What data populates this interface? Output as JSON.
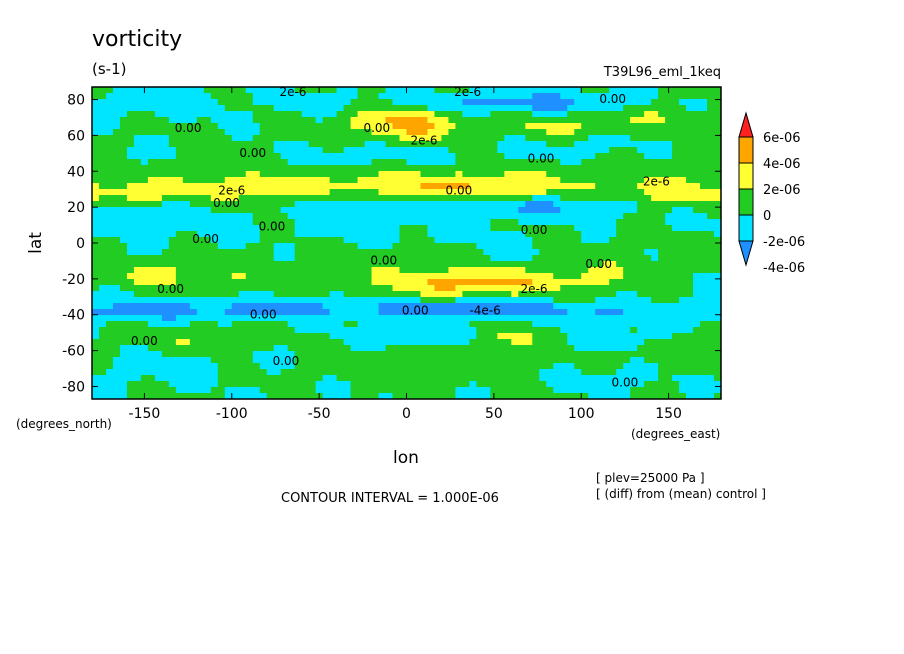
{
  "chart_data": {
    "type": "heatmap",
    "title": "vorticity",
    "units": "(s-1)",
    "experiment": "T39L96_eml_1keq",
    "xlabel": "lon",
    "ylabel": "lat",
    "x_units_label": "(degrees_east)",
    "y_units_label": "(degrees_north)",
    "xlim": [
      -180,
      180
    ],
    "ylim": [
      -87,
      87
    ],
    "xticks": [
      -150,
      -100,
      -50,
      0,
      50,
      100,
      150
    ],
    "xtick_labels": [
      "-150",
      "-100",
      "-50",
      "0",
      "50",
      "100",
      "150"
    ],
    "yticks": [
      80,
      60,
      40,
      20,
      0,
      -20,
      -40,
      -60,
      -80
    ],
    "ytick_labels": [
      "80",
      "60",
      "40",
      "20",
      "0",
      "-20",
      "-40",
      "-60",
      "-80"
    ],
    "contour_interval_text": "CONTOUR INTERVAL = 1.000E-06",
    "level_text": "[ plev=25000 Pa ]",
    "diff_text": "[ (diff) from (mean) control ]",
    "colorbar": {
      "levels": [
        -4e-06,
        -2e-06,
        0,
        2e-06,
        4e-06,
        6e-06
      ],
      "labels": [
        "-4e-06",
        "-2e-06",
        "0",
        "2e-06",
        "4e-06",
        "6e-06"
      ],
      "colors": [
        "#1e90ff",
        "#00e5ff",
        "#22cc22",
        "#ffff33",
        "#ffa500",
        "#ff2020"
      ]
    },
    "contour_labels": [
      {
        "lon": -125,
        "lat": 62,
        "text": "0.00"
      },
      {
        "lon": -88,
        "lat": 48,
        "text": "0.00"
      },
      {
        "lon": -100,
        "lat": 27,
        "text": "2e-6"
      },
      {
        "lon": -103,
        "lat": 20,
        "text": "0.00"
      },
      {
        "lon": -77,
        "lat": 7,
        "text": "0.00"
      },
      {
        "lon": -115,
        "lat": 0,
        "text": "0.00"
      },
      {
        "lon": -135,
        "lat": -28,
        "text": "0.00"
      },
      {
        "lon": -82,
        "lat": -42,
        "text": "0.00"
      },
      {
        "lon": -150,
        "lat": -57,
        "text": "0.00"
      },
      {
        "lon": -69,
        "lat": -68,
        "text": "0.00"
      },
      {
        "lon": -65,
        "lat": 82,
        "text": "2e-6"
      },
      {
        "lon": -17,
        "lat": 62,
        "text": "0.00"
      },
      {
        "lon": 10,
        "lat": 55,
        "text": "2e-6"
      },
      {
        "lon": 35,
        "lat": 82,
        "text": "2e-6"
      },
      {
        "lon": 77,
        "lat": 45,
        "text": "0.00"
      },
      {
        "lon": 118,
        "lat": 78,
        "text": "0.00"
      },
      {
        "lon": 30,
        "lat": 27,
        "text": "0.00"
      },
      {
        "lon": -13,
        "lat": -12,
        "text": "0.00"
      },
      {
        "lon": 73,
        "lat": 5,
        "text": "0.00"
      },
      {
        "lon": 110,
        "lat": -14,
        "text": "0.00"
      },
      {
        "lon": 73,
        "lat": -28,
        "text": "2e-6"
      },
      {
        "lon": 5,
        "lat": -40,
        "text": "0.00"
      },
      {
        "lon": 45,
        "lat": -40,
        "text": "-4e-6"
      },
      {
        "lon": 125,
        "lat": -80,
        "text": "0.00"
      },
      {
        "lon": 143,
        "lat": 32,
        "text": "2e-6"
      }
    ]
  }
}
